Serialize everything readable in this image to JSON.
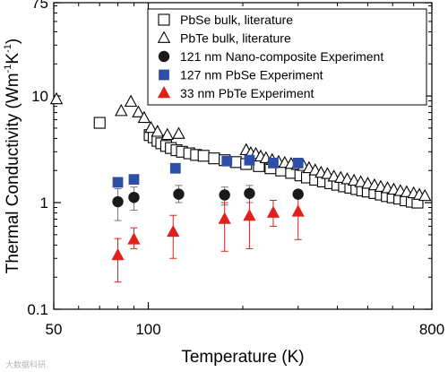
{
  "chart_data": {
    "type": "scatter",
    "xlabel": "Temperature (K)",
    "ylabel": "Thermal Conductivity (Wm",
    "ylabel_sup1": "-1",
    "ylabel_mid": "K",
    "ylabel_sup2": "-1",
    "ylabel_close": ")",
    "xscale": "log",
    "yscale": "log",
    "xlim": [
      50,
      800
    ],
    "ylim": [
      0.1,
      75
    ],
    "x_ticks": [
      {
        "value": 50,
        "label": "50"
      },
      {
        "value": 100,
        "label": "100"
      },
      {
        "value": 800,
        "label": "800"
      }
    ],
    "y_ticks": [
      {
        "value": 0.1,
        "label": "0.1"
      },
      {
        "value": 1,
        "label": "1"
      },
      {
        "value": 10,
        "label": "10"
      },
      {
        "value": 75,
        "label": "75"
      }
    ],
    "legend_position": "top-right",
    "series": [
      {
        "name": "PbSe bulk, literature",
        "marker": "open-square",
        "color": "#000000",
        "points": [
          {
            "x": 70,
            "y": 5.6
          },
          {
            "x": 101,
            "y": 4.3
          },
          {
            "x": 104,
            "y": 4.1
          },
          {
            "x": 107,
            "y": 3.8
          },
          {
            "x": 110,
            "y": 3.6
          },
          {
            "x": 114,
            "y": 3.4
          },
          {
            "x": 118,
            "y": 3.25
          },
          {
            "x": 123,
            "y": 3.1
          },
          {
            "x": 128,
            "y": 3.0
          },
          {
            "x": 135,
            "y": 2.9
          },
          {
            "x": 142,
            "y": 2.8
          },
          {
            "x": 150,
            "y": 2.75
          },
          {
            "x": 162,
            "y": 2.6
          },
          {
            "x": 175,
            "y": 2.5
          },
          {
            "x": 190,
            "y": 2.4
          },
          {
            "x": 205,
            "y": 2.3
          },
          {
            "x": 225,
            "y": 2.2
          },
          {
            "x": 245,
            "y": 2.1
          },
          {
            "x": 265,
            "y": 2.0
          },
          {
            "x": 285,
            "y": 1.9
          },
          {
            "x": 305,
            "y": 1.8
          },
          {
            "x": 320,
            "y": 1.72
          },
          {
            "x": 340,
            "y": 1.64
          },
          {
            "x": 360,
            "y": 1.58
          },
          {
            "x": 380,
            "y": 1.52
          },
          {
            "x": 400,
            "y": 1.47
          },
          {
            "x": 420,
            "y": 1.42
          },
          {
            "x": 440,
            "y": 1.38
          },
          {
            "x": 460,
            "y": 1.34
          },
          {
            "x": 480,
            "y": 1.3
          },
          {
            "x": 500,
            "y": 1.27
          },
          {
            "x": 525,
            "y": 1.23
          },
          {
            "x": 550,
            "y": 1.19
          },
          {
            "x": 575,
            "y": 1.15
          },
          {
            "x": 600,
            "y": 1.12
          },
          {
            "x": 630,
            "y": 1.09
          },
          {
            "x": 660,
            "y": 1.05
          },
          {
            "x": 690,
            "y": 1.02
          },
          {
            "x": 720,
            "y": 1.0
          }
        ]
      },
      {
        "name": "PbTe bulk, literature",
        "marker": "open-triangle",
        "color": "#000000",
        "points": [
          {
            "x": 51,
            "y": 9.3
          },
          {
            "x": 82,
            "y": 7.2
          },
          {
            "x": 88,
            "y": 8.8
          },
          {
            "x": 93,
            "y": 7.0
          },
          {
            "x": 97,
            "y": 6.2
          },
          {
            "x": 102,
            "y": 5.0
          },
          {
            "x": 107,
            "y": 4.6
          },
          {
            "x": 115,
            "y": 4.3
          },
          {
            "x": 125,
            "y": 4.4
          },
          {
            "x": 205,
            "y": 3.1
          },
          {
            "x": 212,
            "y": 2.9
          },
          {
            "x": 220,
            "y": 2.85
          },
          {
            "x": 228,
            "y": 2.7
          },
          {
            "x": 237,
            "y": 2.6
          },
          {
            "x": 248,
            "y": 2.5
          },
          {
            "x": 260,
            "y": 2.4
          },
          {
            "x": 272,
            "y": 2.35
          },
          {
            "x": 285,
            "y": 2.3
          },
          {
            "x": 298,
            "y": 2.25
          },
          {
            "x": 312,
            "y": 2.2
          },
          {
            "x": 325,
            "y": 2.1
          },
          {
            "x": 340,
            "y": 2.0
          },
          {
            "x": 355,
            "y": 1.9
          },
          {
            "x": 372,
            "y": 1.85
          },
          {
            "x": 390,
            "y": 1.75
          },
          {
            "x": 410,
            "y": 1.7
          },
          {
            "x": 430,
            "y": 1.65
          },
          {
            "x": 452,
            "y": 1.6
          },
          {
            "x": 475,
            "y": 1.55
          },
          {
            "x": 500,
            "y": 1.5
          },
          {
            "x": 525,
            "y": 1.45
          },
          {
            "x": 550,
            "y": 1.4
          },
          {
            "x": 578,
            "y": 1.36
          },
          {
            "x": 605,
            "y": 1.32
          },
          {
            "x": 635,
            "y": 1.28
          },
          {
            "x": 665,
            "y": 1.25
          },
          {
            "x": 700,
            "y": 1.22
          },
          {
            "x": 730,
            "y": 1.18
          },
          {
            "x": 760,
            "y": 1.15
          }
        ]
      },
      {
        "name": "121 nm Nano-composite Experiment",
        "marker": "filled-circle",
        "color": "#1a1a1a",
        "points": [
          {
            "x": 80,
            "y": 1.02,
            "err_low": 0.68,
            "err_high": 1.35
          },
          {
            "x": 90,
            "y": 1.12,
            "err_low": 0.85,
            "err_high": 1.4
          },
          {
            "x": 125,
            "y": 1.2,
            "err_low": 1.0,
            "err_high": 1.45
          },
          {
            "x": 175,
            "y": 1.18,
            "err_low": 0.95,
            "err_high": 1.4
          },
          {
            "x": 210,
            "y": 1.22,
            "err_low": 1.0,
            "err_high": 1.45
          },
          {
            "x": 300,
            "y": 1.2,
            "err_low": 1.1,
            "err_high": 1.3
          }
        ]
      },
      {
        "name": "127 nm PbSe Experiment",
        "marker": "filled-square",
        "color": "#2e4fa8",
        "points": [
          {
            "x": 80,
            "y": 1.55
          },
          {
            "x": 90,
            "y": 1.65
          },
          {
            "x": 122,
            "y": 2.1
          },
          {
            "x": 178,
            "y": 2.45
          },
          {
            "x": 210,
            "y": 2.5
          },
          {
            "x": 250,
            "y": 2.35
          },
          {
            "x": 300,
            "y": 2.35
          }
        ]
      },
      {
        "name": "33 nm PbTe Experiment",
        "marker": "filled-triangle",
        "color": "#e0211b",
        "points": [
          {
            "x": 80,
            "y": 0.32,
            "err_low": 0.18,
            "err_high": 0.46
          },
          {
            "x": 90,
            "y": 0.45,
            "err_low": 0.37,
            "err_high": 0.58
          },
          {
            "x": 120,
            "y": 0.53,
            "err_low": 0.3,
            "err_high": 0.76
          },
          {
            "x": 175,
            "y": 0.7,
            "err_low": 0.35,
            "err_high": 1.0
          },
          {
            "x": 210,
            "y": 0.75,
            "err_low": 0.37,
            "err_high": 1.2
          },
          {
            "x": 250,
            "y": 0.8,
            "err_low": 0.6,
            "err_high": 1.05
          },
          {
            "x": 300,
            "y": 0.82,
            "err_low": 0.45,
            "err_high": 1.3
          }
        ]
      }
    ],
    "error_bar_colors": {
      "121 nm Nano-composite Experiment": "#777777",
      "33 nm PbTe Experiment": "#e0211b"
    }
  },
  "watermark": {
    "text": "大数据科研"
  }
}
